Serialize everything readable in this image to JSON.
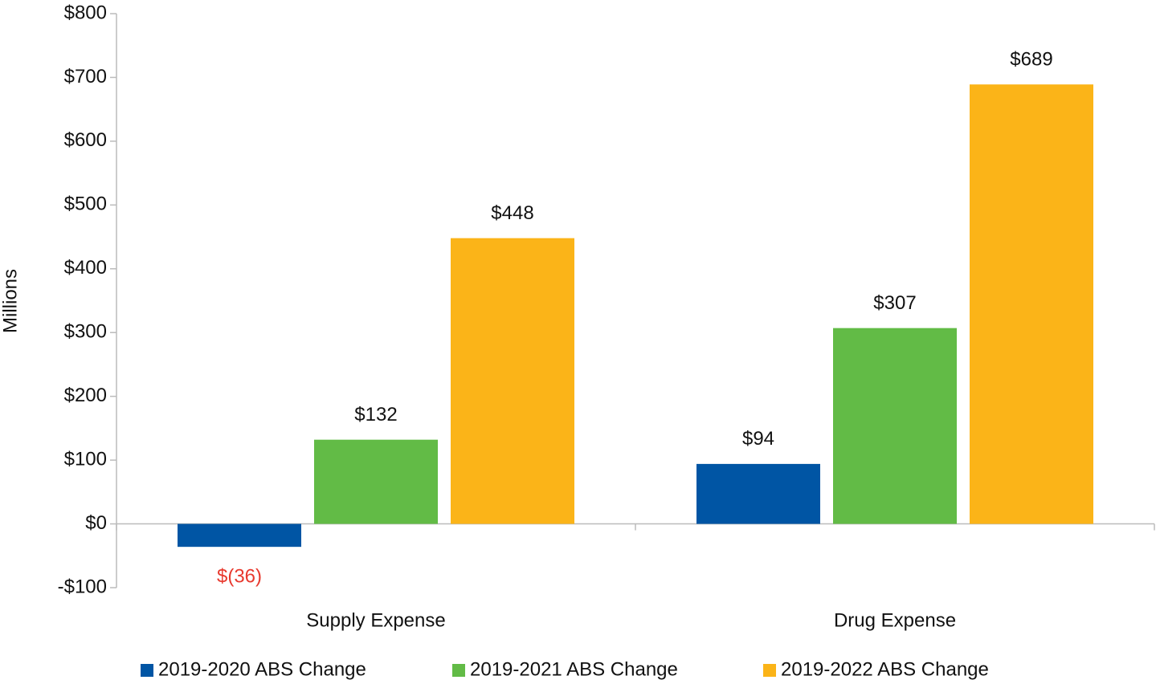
{
  "chart_data": {
    "type": "bar",
    "y_axis_label": "Millions",
    "categories": [
      "Supply Expense",
      "Drug Expense"
    ],
    "series": [
      {
        "name": "2019-2020 ABS Change",
        "color": "#0055a4",
        "values": [
          -36,
          94
        ],
        "value_labels": [
          "$(36)",
          "$94"
        ]
      },
      {
        "name": "2019-2021 ABS Change",
        "color": "#62bb46",
        "values": [
          132,
          307
        ],
        "value_labels": [
          "$132",
          "$307"
        ]
      },
      {
        "name": "2019-2022 ABS Change",
        "color": "#fbb418",
        "values": [
          448,
          689
        ],
        "value_labels": [
          "$448",
          "$689"
        ]
      }
    ],
    "negative_label_color": "#e8392e",
    "ylim": [
      -100,
      800
    ],
    "yticks": [
      {
        "value": -100,
        "label": "-$100"
      },
      {
        "value": 0,
        "label": "$0"
      },
      {
        "value": 100,
        "label": "$100"
      },
      {
        "value": 200,
        "label": "$200"
      },
      {
        "value": 300,
        "label": "$300"
      },
      {
        "value": 400,
        "label": "$400"
      },
      {
        "value": 500,
        "label": "$500"
      },
      {
        "value": 600,
        "label": "$600"
      },
      {
        "value": 700,
        "label": "$700"
      },
      {
        "value": 800,
        "label": "$800"
      }
    ],
    "grid": false,
    "legend": "bottom"
  }
}
